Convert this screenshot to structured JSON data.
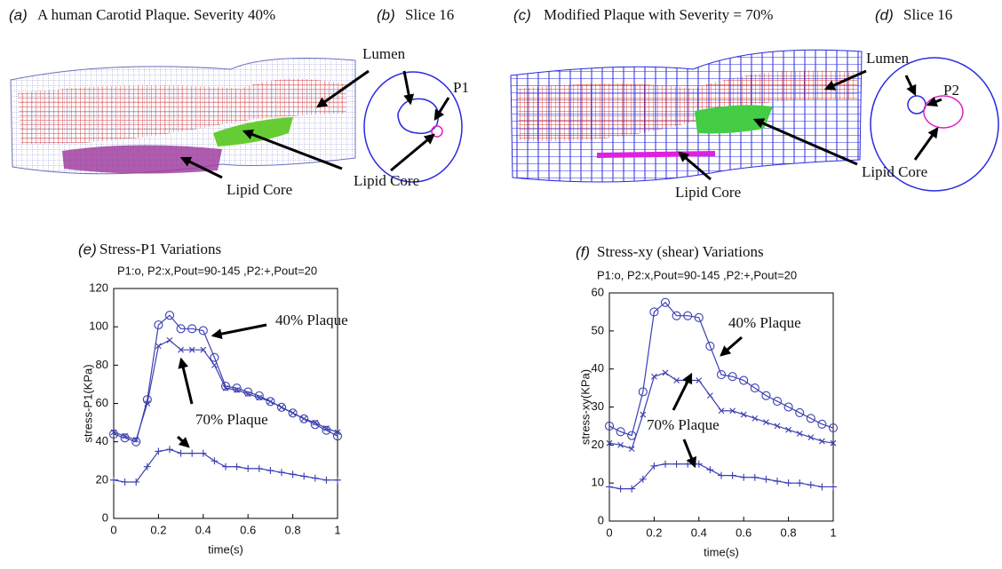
{
  "panels": {
    "a": {
      "label": "(a)",
      "title": "A human Carotid Plaque.  Severity 40%",
      "lumen": "Lumen",
      "core": "Lipid Core"
    },
    "b": {
      "label": "(b)",
      "title": "Slice 16",
      "point": "P1",
      "core": "Lipid Core"
    },
    "c": {
      "label": "(c)",
      "title": "Modified  Plaque with Severity = 70%",
      "lumen": "Lumen",
      "core": "Lipid Core"
    },
    "d": {
      "label": "(d)",
      "title": "Slice 16",
      "point": "P2",
      "core": "Lipid Core"
    }
  },
  "chart_data": [
    {
      "type": "line",
      "label": "(e)",
      "title": "Stress-P1 Variations",
      "subtitle": "P1:o, P2:x,Pout=90-145 ,P2:+,Pout=20",
      "xlabel": "time(s)",
      "ylabel": "stress-P1(KPa)",
      "x": [
        0,
        0.05,
        0.1,
        0.15,
        0.2,
        0.25,
        0.3,
        0.35,
        0.4,
        0.45,
        0.5,
        0.55,
        0.6,
        0.65,
        0.7,
        0.75,
        0.8,
        0.85,
        0.9,
        0.95,
        1
      ],
      "xlim": [
        0,
        1
      ],
      "xticks": [
        0,
        0.2,
        0.4,
        0.6,
        0.8,
        1
      ],
      "ylim": [
        0,
        120
      ],
      "yticks": [
        0,
        20,
        40,
        60,
        80,
        100,
        120
      ],
      "series": [
        {
          "marker": "circle",
          "color": "#3a3fb0",
          "values": [
            44,
            42,
            40,
            62,
            101,
            106,
            99,
            99,
            98,
            84,
            69,
            68,
            66,
            64,
            61,
            58,
            55,
            52,
            49,
            46,
            43
          ]
        },
        {
          "marker": "x",
          "color": "#3a3fb0",
          "values": [
            45,
            43,
            41,
            60,
            90,
            93,
            88,
            88,
            88,
            80,
            68,
            67,
            65,
            63,
            61,
            58,
            55,
            52,
            50,
            47,
            45
          ]
        },
        {
          "marker": "plus",
          "color": "#3a3fb0",
          "values": [
            20,
            19,
            19,
            27,
            35,
            36,
            34,
            34,
            34,
            30,
            27,
            27,
            26,
            26,
            25,
            24,
            23,
            22,
            21,
            20,
            20
          ]
        }
      ],
      "annotations": [
        "40% Plaque",
        "70% Plaque"
      ]
    },
    {
      "type": "line",
      "label": "(f)",
      "title": "Stress-xy (shear) Variations",
      "subtitle": "P1:o, P2:x,Pout=90-145 ,P2:+,Pout=20",
      "xlabel": "time(s)",
      "ylabel": "stress-xy(KPa)",
      "x": [
        0,
        0.05,
        0.1,
        0.15,
        0.2,
        0.25,
        0.3,
        0.35,
        0.4,
        0.45,
        0.5,
        0.55,
        0.6,
        0.65,
        0.7,
        0.75,
        0.8,
        0.85,
        0.9,
        0.95,
        1
      ],
      "xlim": [
        0,
        1
      ],
      "xticks": [
        0,
        0.2,
        0.4,
        0.6,
        0.8,
        1
      ],
      "ylim": [
        0,
        60
      ],
      "yticks": [
        0,
        10,
        20,
        30,
        40,
        50,
        60
      ],
      "series": [
        {
          "marker": "circle",
          "color": "#3a3fb0",
          "values": [
            25,
            23.5,
            22.5,
            34,
            55,
            57.5,
            54,
            54,
            53.5,
            46,
            38.5,
            38,
            37,
            35,
            33,
            31.5,
            30,
            28.5,
            27,
            25.5,
            24.5
          ]
        },
        {
          "marker": "x",
          "color": "#3a3fb0",
          "values": [
            20.5,
            20,
            19,
            28,
            38,
            39,
            37,
            37,
            37,
            33,
            29,
            29,
            28,
            27,
            26,
            25,
            24,
            23,
            22,
            21,
            20.5
          ]
        },
        {
          "marker": "plus",
          "color": "#3a3fb0",
          "values": [
            9,
            8.5,
            8.5,
            11,
            14.5,
            15,
            15,
            15,
            15,
            13.5,
            12,
            12,
            11.5,
            11.5,
            11,
            10.5,
            10,
            10,
            9.5,
            9,
            9
          ]
        }
      ],
      "annotations": [
        "40% Plaque",
        "70% Plaque"
      ]
    }
  ]
}
